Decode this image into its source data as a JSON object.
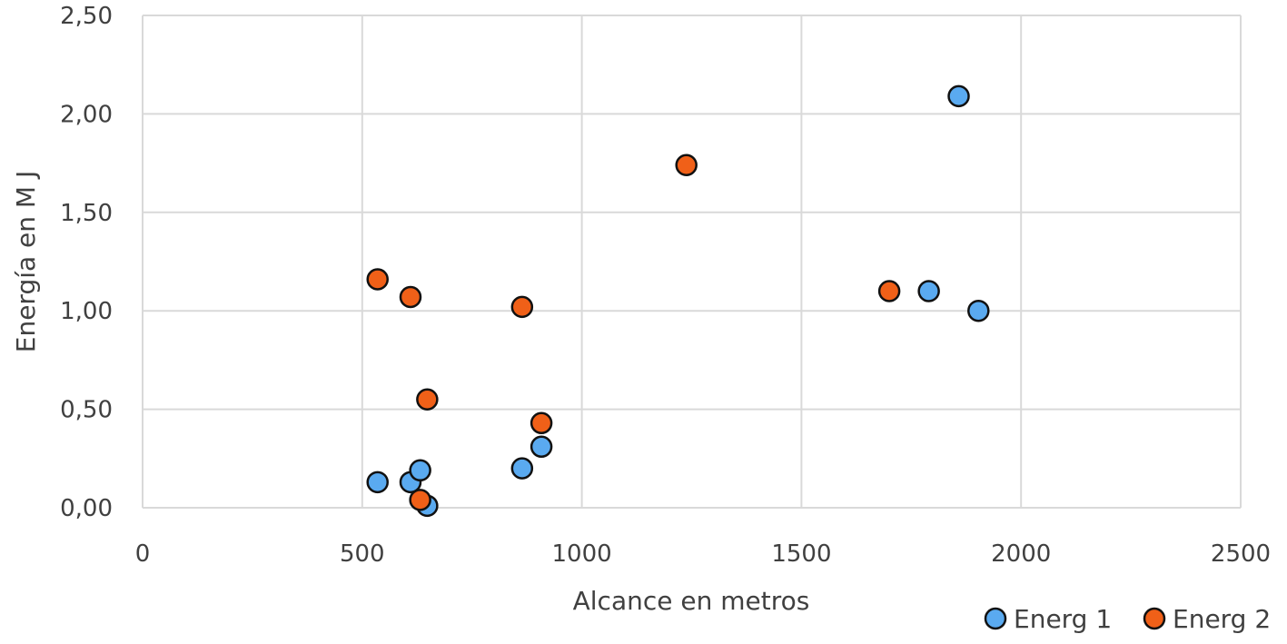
{
  "chart_data": {
    "type": "scatter",
    "title": "",
    "xlabel": "Alcance en metros",
    "ylabel": "Energía en M J",
    "xlim": [
      0,
      2500
    ],
    "ylim": [
      0,
      2.5
    ],
    "x_ticks": [
      0,
      500,
      1000,
      1500,
      2000,
      2500
    ],
    "x_tick_labels": [
      "0",
      "500",
      "1000",
      "1500",
      "2000",
      "2500"
    ],
    "y_ticks": [
      0,
      0.5,
      1.0,
      1.5,
      2.0,
      2.5
    ],
    "y_tick_labels": [
      "0,00",
      "0,50",
      "1,00",
      "1,50",
      "2,00",
      "2,50"
    ],
    "grid": true,
    "legend_position": "bottom-right",
    "series": [
      {
        "name": "Energ 1",
        "color": "#5aaaf0",
        "points": [
          {
            "x": 535,
            "y": 0.13
          },
          {
            "x": 610,
            "y": 0.13
          },
          {
            "x": 632,
            "y": 0.19
          },
          {
            "x": 648,
            "y": 0.01
          },
          {
            "x": 864,
            "y": 0.2
          },
          {
            "x": 908,
            "y": 0.31
          },
          {
            "x": 1790,
            "y": 1.1
          },
          {
            "x": 1858,
            "y": 2.09
          },
          {
            "x": 1903,
            "y": 1.0
          }
        ]
      },
      {
        "name": "Energ 2",
        "color": "#f06018",
        "points": [
          {
            "x": 535,
            "y": 1.16
          },
          {
            "x": 610,
            "y": 1.07
          },
          {
            "x": 632,
            "y": 0.04
          },
          {
            "x": 648,
            "y": 0.55
          },
          {
            "x": 864,
            "y": 1.02
          },
          {
            "x": 908,
            "y": 0.43
          },
          {
            "x": 1238,
            "y": 1.74
          },
          {
            "x": 1700,
            "y": 1.1
          }
        ]
      }
    ]
  }
}
